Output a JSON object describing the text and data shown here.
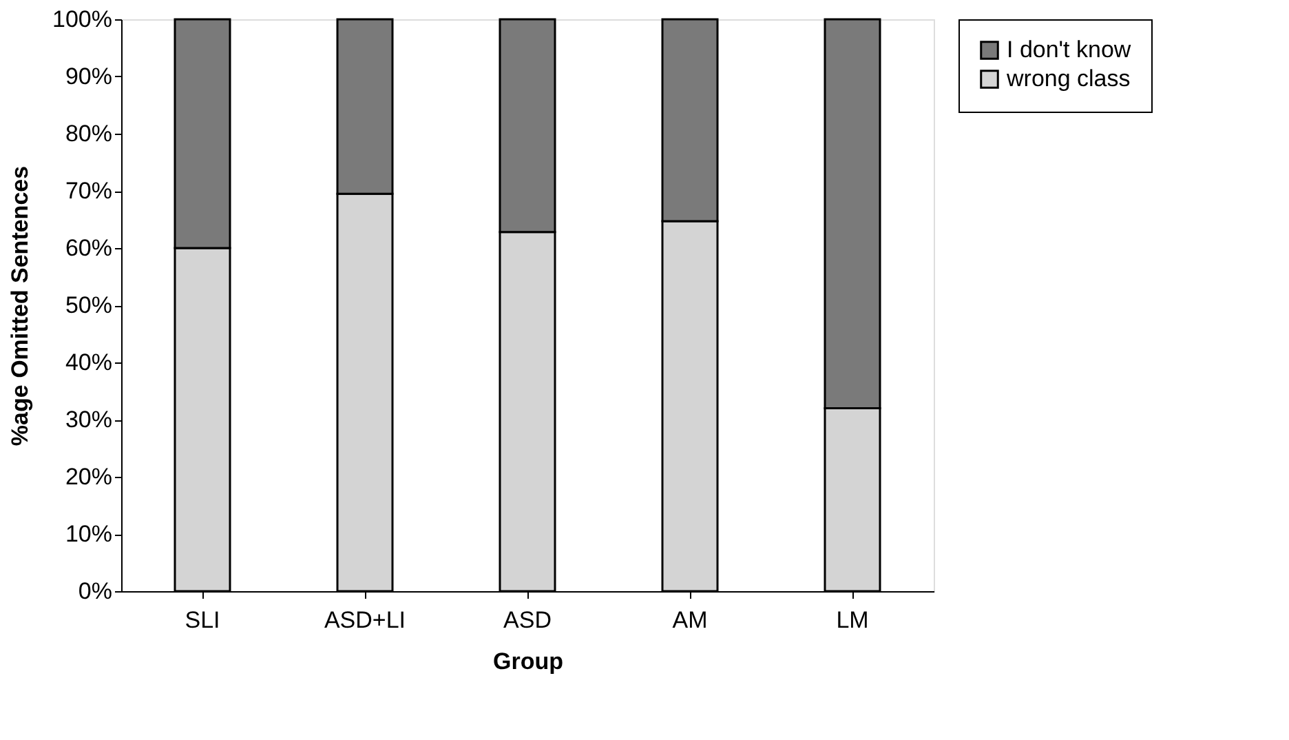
{
  "chart_data": {
    "type": "bar",
    "stacked": true,
    "xlabel": "Group",
    "ylabel": "%age Omitted Sentences",
    "categories": [
      "SLI",
      "ASD+LI",
      "ASD",
      "AM",
      "LM"
    ],
    "series": [
      {
        "name": "wrong class",
        "color": "#d4d4d4",
        "values": [
          60,
          69.5,
          62.8,
          64.7,
          32
        ]
      },
      {
        "name": "I don't know",
        "color": "#7a7a7a",
        "values": [
          40,
          30.5,
          37.2,
          35.3,
          68
        ]
      }
    ],
    "ylim": [
      0,
      100
    ],
    "yticks": [
      {
        "value": 0,
        "label": "0%"
      },
      {
        "value": 10,
        "label": "10%"
      },
      {
        "value": 20,
        "label": "20%"
      },
      {
        "value": 30,
        "label": "30%"
      },
      {
        "value": 40,
        "label": "40%"
      },
      {
        "value": 50,
        "label": "50%"
      },
      {
        "value": 60,
        "label": "60%"
      },
      {
        "value": 70,
        "label": "70%"
      },
      {
        "value": 80,
        "label": "80%"
      },
      {
        "value": 90,
        "label": "90%"
      },
      {
        "value": 100,
        "label": "100%"
      }
    ],
    "grid": false,
    "legend": "right"
  }
}
